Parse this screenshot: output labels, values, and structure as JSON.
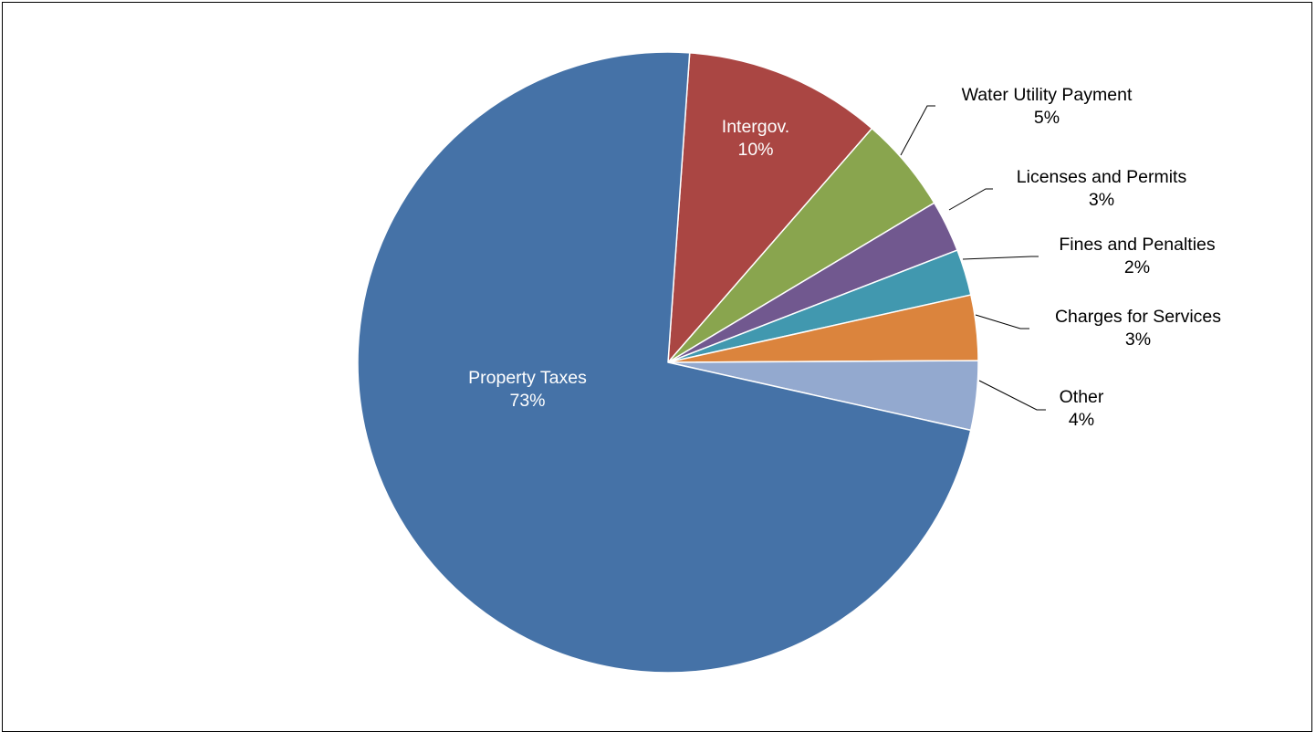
{
  "chart_data": {
    "type": "pie",
    "start_angle_deg": -86,
    "direction": "clockwise",
    "slices": [
      {
        "label": "Intergov.",
        "pct_label": "10%",
        "value": 10.3,
        "color": "#AA4643",
        "label_placement": "inside",
        "label_color": "#ffffff"
      },
      {
        "label": "Water Utility Payment",
        "pct_label": "5%",
        "value": 5.0,
        "color": "#89A54E",
        "label_placement": "outside",
        "label_color": "#000000"
      },
      {
        "label": "Licenses and Permits",
        "pct_label": "3%",
        "value": 2.7,
        "color": "#71588F",
        "label_placement": "outside",
        "label_color": "#000000"
      },
      {
        "label": "Fines and Penalties",
        "pct_label": "2%",
        "value": 2.4,
        "color": "#4198AF",
        "label_placement": "outside",
        "label_color": "#000000"
      },
      {
        "label": "Charges for Services",
        "pct_label": "3%",
        "value": 3.4,
        "color": "#DB843D",
        "label_placement": "outside",
        "label_color": "#000000"
      },
      {
        "label": "Other",
        "pct_label": "4%",
        "value": 3.6,
        "color": "#93A9CF",
        "label_placement": "outside",
        "label_color": "#000000"
      },
      {
        "label": "Property Taxes",
        "pct_label": "73%",
        "value": 72.6,
        "color": "#4572A7",
        "label_placement": "inside",
        "label_color": "#ffffff"
      }
    ],
    "legend": "none"
  }
}
